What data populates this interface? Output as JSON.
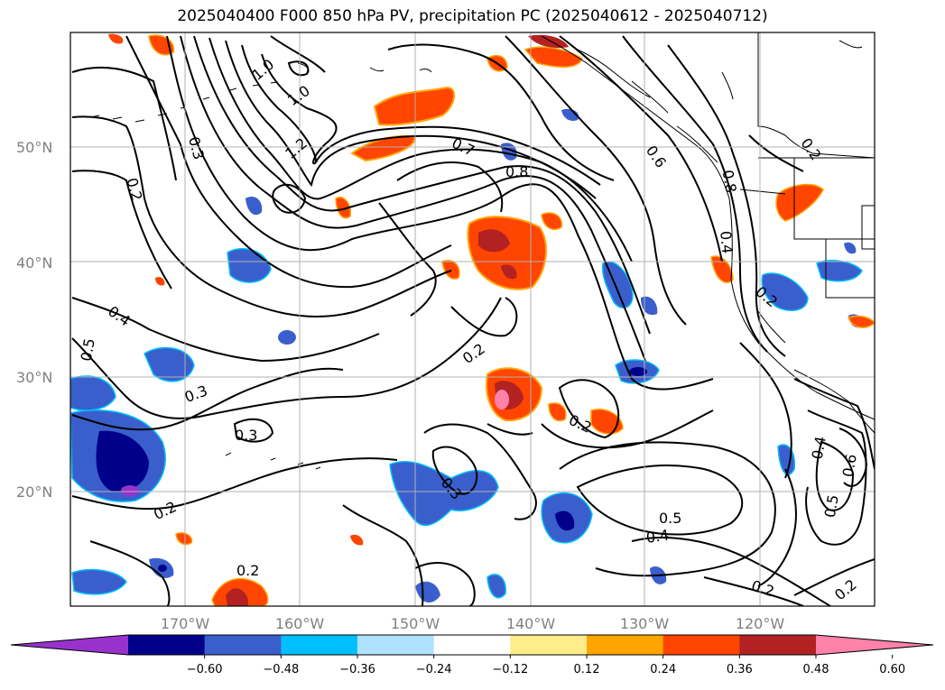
{
  "title": "2025040400 F000 850 hPa PV, precipitation PC (2025040612 - 2025040712)",
  "map": {
    "region": "North Pacific and western North America",
    "lon_range": [
      -180,
      -110
    ],
    "lat_range": [
      10,
      60
    ],
    "gridlines": true
  },
  "axes": {
    "lat_ticks": [
      "50°N",
      "40°N",
      "30°N",
      "20°N"
    ],
    "lon_ticks": [
      "170°W",
      "160°W",
      "150°W",
      "140°W",
      "130°W",
      "120°W"
    ]
  },
  "contour_labels": [
    "1.0",
    "1.0",
    "1.2",
    "0.3",
    "0.2",
    "0.7",
    "0.8",
    "0.6",
    "0.8",
    "0.4",
    "0.2",
    "0.2",
    "0.4",
    "0.5",
    "0.3",
    "0.2",
    "0.3",
    "0.2",
    "0.3",
    "0.2",
    "0.5",
    "0.4",
    "0.2",
    "0.2",
    "0.4",
    "0.6",
    "0.5",
    "0.2"
  ],
  "colorbar": {
    "extend": "both",
    "colors": [
      "#9932cc",
      "#00008b",
      "#3a5fcd",
      "#00bfff",
      "#b0e2ff",
      "#ffffff",
      "#ffec8b",
      "#ffa500",
      "#ff4500",
      "#b22222",
      "#ff82ab"
    ],
    "labels": [
      "−0.60",
      "−0.48",
      "−0.36",
      "−0.24",
      "−0.12",
      "0.12",
      "0.24",
      "0.36",
      "0.48",
      "0.60"
    ]
  }
}
